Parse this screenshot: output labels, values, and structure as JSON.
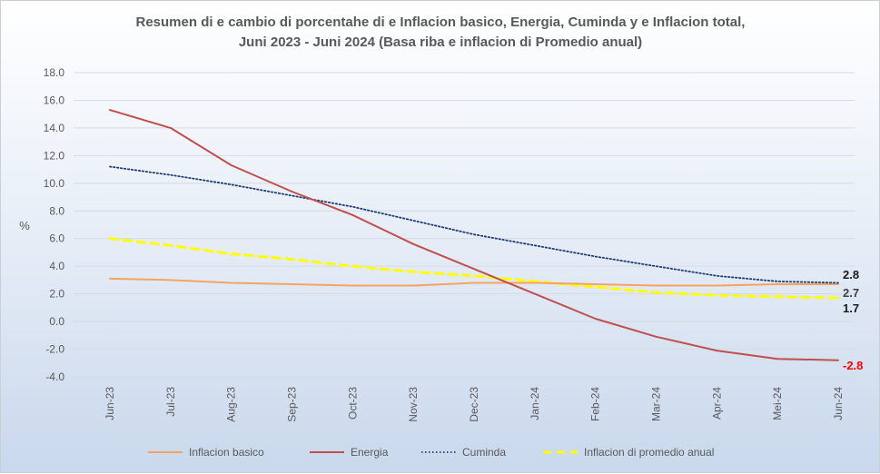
{
  "chart_data": {
    "type": "line",
    "title_lines": [
      "Resumen di e cambio di porcentahe di e Inflacion basico, Energia, Cuminda y e Inflacion total,",
      "Juni 2023 - Juni 2024 (Basa riba e inflacion di Promedio anual)"
    ],
    "ylabel": "%",
    "xlabel": "",
    "ylim": [
      -4.0,
      18.0
    ],
    "yticks": [
      "18.0",
      "16.0",
      "14.0",
      "12.0",
      "10.0",
      "8.0",
      "6.0",
      "4.0",
      "2.0",
      "0.0",
      "-2.0",
      "-4.0"
    ],
    "categories": [
      "Jun-23",
      "Jul-23",
      "Aug-23",
      "Sep-23",
      "Oct-23",
      "Nov-23",
      "Dec-23",
      "Jan-24",
      "Feb-24",
      "Mar-24",
      "Apr-24",
      "Mei-24",
      "Jun-24"
    ],
    "grid": true,
    "legend_position": "bottom",
    "series": [
      {
        "name": "Inflacion basico",
        "color": "#f4a460",
        "style": "solid",
        "values": [
          3.1,
          3.0,
          2.8,
          2.7,
          2.6,
          2.6,
          2.8,
          2.8,
          2.7,
          2.6,
          2.6,
          2.7,
          2.7
        ],
        "end_label": "2.7",
        "end_label_color": "#404040"
      },
      {
        "name": "Energia",
        "color": "#c0504d",
        "style": "solid",
        "values": [
          15.3,
          14.0,
          11.3,
          9.4,
          7.7,
          5.6,
          3.8,
          2.0,
          0.2,
          -1.1,
          -2.1,
          -2.7,
          -2.8
        ],
        "end_label": "-2.8",
        "end_label_color": "#ff0000"
      },
      {
        "name": "Cuminda",
        "color": "#1f3b73",
        "style": "dotted",
        "values": [
          11.2,
          10.6,
          9.9,
          9.1,
          8.3,
          7.3,
          6.3,
          5.5,
          4.7,
          4.0,
          3.3,
          2.9,
          2.8
        ],
        "end_label": "2.8",
        "end_label_color": "#1a1a1a"
      },
      {
        "name": "Inflacion di promedio anual",
        "color": "#ffff00",
        "style": "dashed",
        "values": [
          6.0,
          5.5,
          4.9,
          4.5,
          4.0,
          3.6,
          3.3,
          2.9,
          2.5,
          2.1,
          1.9,
          1.8,
          1.7
        ],
        "end_label": "1.7",
        "end_label_color": "#1a1a1a"
      }
    ]
  }
}
